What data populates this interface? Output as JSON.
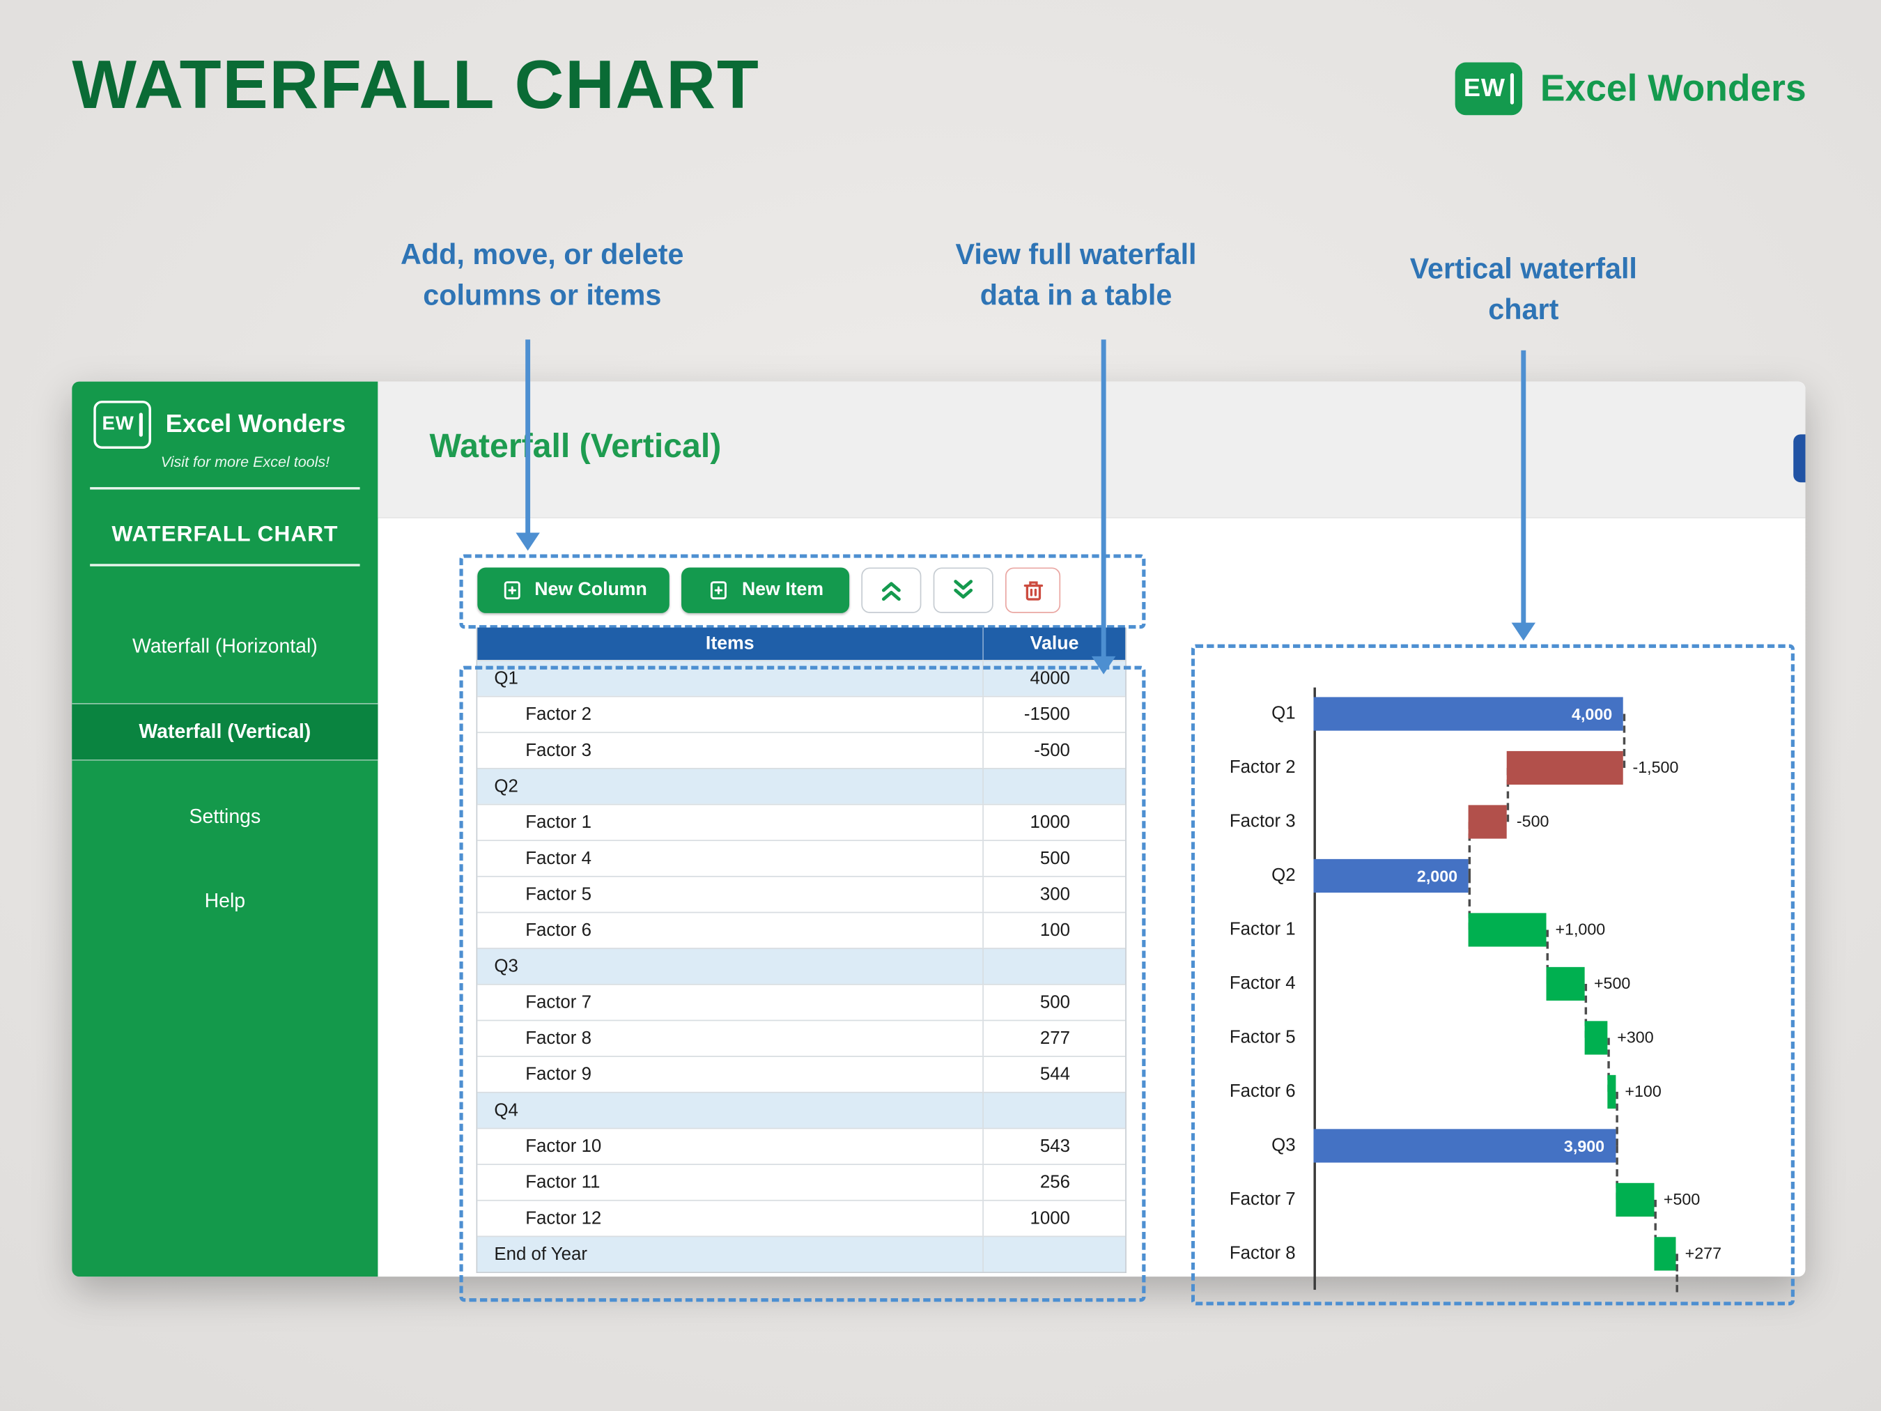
{
  "page": {
    "title": "WATERFALL CHART"
  },
  "brand": {
    "badge": "EW",
    "name": "Excel Wonders"
  },
  "annotations": {
    "toolbar": {
      "line1": "Add, move, or delete",
      "line2": "columns or items"
    },
    "table": {
      "line1": "View full waterfall",
      "line2": "data in a table"
    },
    "chart": {
      "line1": "Vertical waterfall",
      "line2": "chart"
    }
  },
  "sidebar": {
    "badge": "EW",
    "brand_name": "Excel Wonders",
    "tagline": "Visit for more Excel tools!",
    "app_title": "WATERFALL CHART",
    "items": [
      {
        "label": "Waterfall (Horizontal)",
        "slug": "waterfall-horizontal",
        "active": false
      },
      {
        "label": "Waterfall (Vertical)",
        "slug": "waterfall-vertical",
        "active": true
      },
      {
        "label": "Settings",
        "slug": "settings",
        "active": false
      },
      {
        "label": "Help",
        "slug": "help",
        "active": false
      }
    ]
  },
  "main": {
    "heading": "Waterfall (Vertical)",
    "toolbar": {
      "new_column": "New Column",
      "new_item": "New Item"
    },
    "table": {
      "headers": [
        "Items",
        "Value"
      ],
      "rows": [
        {
          "item": "Q1",
          "value": "4000",
          "category": true
        },
        {
          "item": "Factor 2",
          "value": "-1500",
          "category": false
        },
        {
          "item": "Factor 3",
          "value": "-500",
          "category": false
        },
        {
          "item": "Q2",
          "value": "",
          "category": true
        },
        {
          "item": "Factor 1",
          "value": "1000",
          "category": false
        },
        {
          "item": "Factor 4",
          "value": "500",
          "category": false
        },
        {
          "item": "Factor 5",
          "value": "300",
          "category": false
        },
        {
          "item": "Factor 6",
          "value": "100",
          "category": false
        },
        {
          "item": "Q3",
          "value": "",
          "category": true
        },
        {
          "item": "Factor 7",
          "value": "500",
          "category": false
        },
        {
          "item": "Factor 8",
          "value": "277",
          "category": false
        },
        {
          "item": "Factor 9",
          "value": "544",
          "category": false
        },
        {
          "item": "Q4",
          "value": "",
          "category": true
        },
        {
          "item": "Factor 10",
          "value": "543",
          "category": false
        },
        {
          "item": "Factor 11",
          "value": "256",
          "category": false
        },
        {
          "item": "Factor 12",
          "value": "1000",
          "category": false
        },
        {
          "item": "End of Year",
          "value": "",
          "category": true
        }
      ]
    }
  },
  "chart_data": {
    "type": "bar",
    "orientation": "horizontal-waterfall",
    "categories": [
      "Q1",
      "Factor 2",
      "Factor 3",
      "Q2",
      "Factor 1",
      "Factor 4",
      "Factor 5",
      "Factor 6",
      "Q3",
      "Factor 7",
      "Factor 8"
    ],
    "values": [
      4000,
      -1500,
      -500,
      2000,
      1000,
      500,
      300,
      100,
      3900,
      500,
      277
    ],
    "labels": [
      "4,000",
      "-1,500",
      "-500",
      "2,000",
      "+1,000",
      "+500",
      "+300",
      "+100",
      "3,900",
      "+500",
      "+277"
    ],
    "kinds": [
      "total",
      "decrease",
      "decrease",
      "total",
      "increase",
      "increase",
      "increase",
      "increase",
      "total",
      "increase",
      "increase"
    ],
    "colors": {
      "total": "#4472C4",
      "increase": "#00B050",
      "decrease": "#B2504B"
    },
    "xlim": [
      0,
      4800
    ],
    "legend": "none",
    "grid": "off"
  }
}
